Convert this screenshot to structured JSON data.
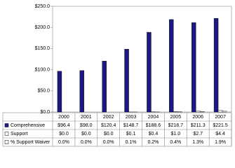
{
  "chart_data": {
    "type": "bar",
    "categories": [
      "2000",
      "2001",
      "2002",
      "2003",
      "2004",
      "2005",
      "2006",
      "2007"
    ],
    "series": [
      {
        "name": "Comprehensive",
        "color": "#1a1a80",
        "values": [
          96.4,
          98.0,
          120.4,
          148.7,
          188.6,
          218.7,
          211.3,
          221.5
        ],
        "value_labels": [
          "$96.4",
          "$98.0",
          "$120.4",
          "$148.7",
          "$188.6",
          "$218.7",
          "$211.3",
          "$221.5"
        ]
      },
      {
        "name": "Support",
        "color": "#ffffff",
        "values": [
          0.0,
          0.0,
          0.0,
          0.1,
          0.4,
          1.0,
          2.7,
          4.4
        ],
        "value_labels": [
          "$0.0",
          "$0.0",
          "$0.0",
          "$0.1",
          "$0.4",
          "$1.0",
          "$2.7",
          "$4.4"
        ]
      },
      {
        "name": "% Support Waiver",
        "color": "#ffffff",
        "values": [
          0.0,
          0.0,
          0.0,
          0.1,
          0.2,
          0.4,
          1.3,
          1.9
        ],
        "value_labels": [
          "0.0%",
          "0.0%",
          "0.0%",
          "0.1%",
          "0.2%",
          "0.4%",
          "1.3%",
          "1.9%"
        ]
      }
    ],
    "ylim": [
      0,
      250
    ],
    "yticks": [
      {
        "value": 0,
        "label": "$0.0"
      },
      {
        "value": 50,
        "label": "$50.0"
      },
      {
        "value": 100,
        "label": "$100.0"
      },
      {
        "value": 150,
        "label": "$150.0"
      },
      {
        "value": 200,
        "label": "$200.0"
      },
      {
        "value": 250,
        "label": "$250.0"
      }
    ]
  }
}
